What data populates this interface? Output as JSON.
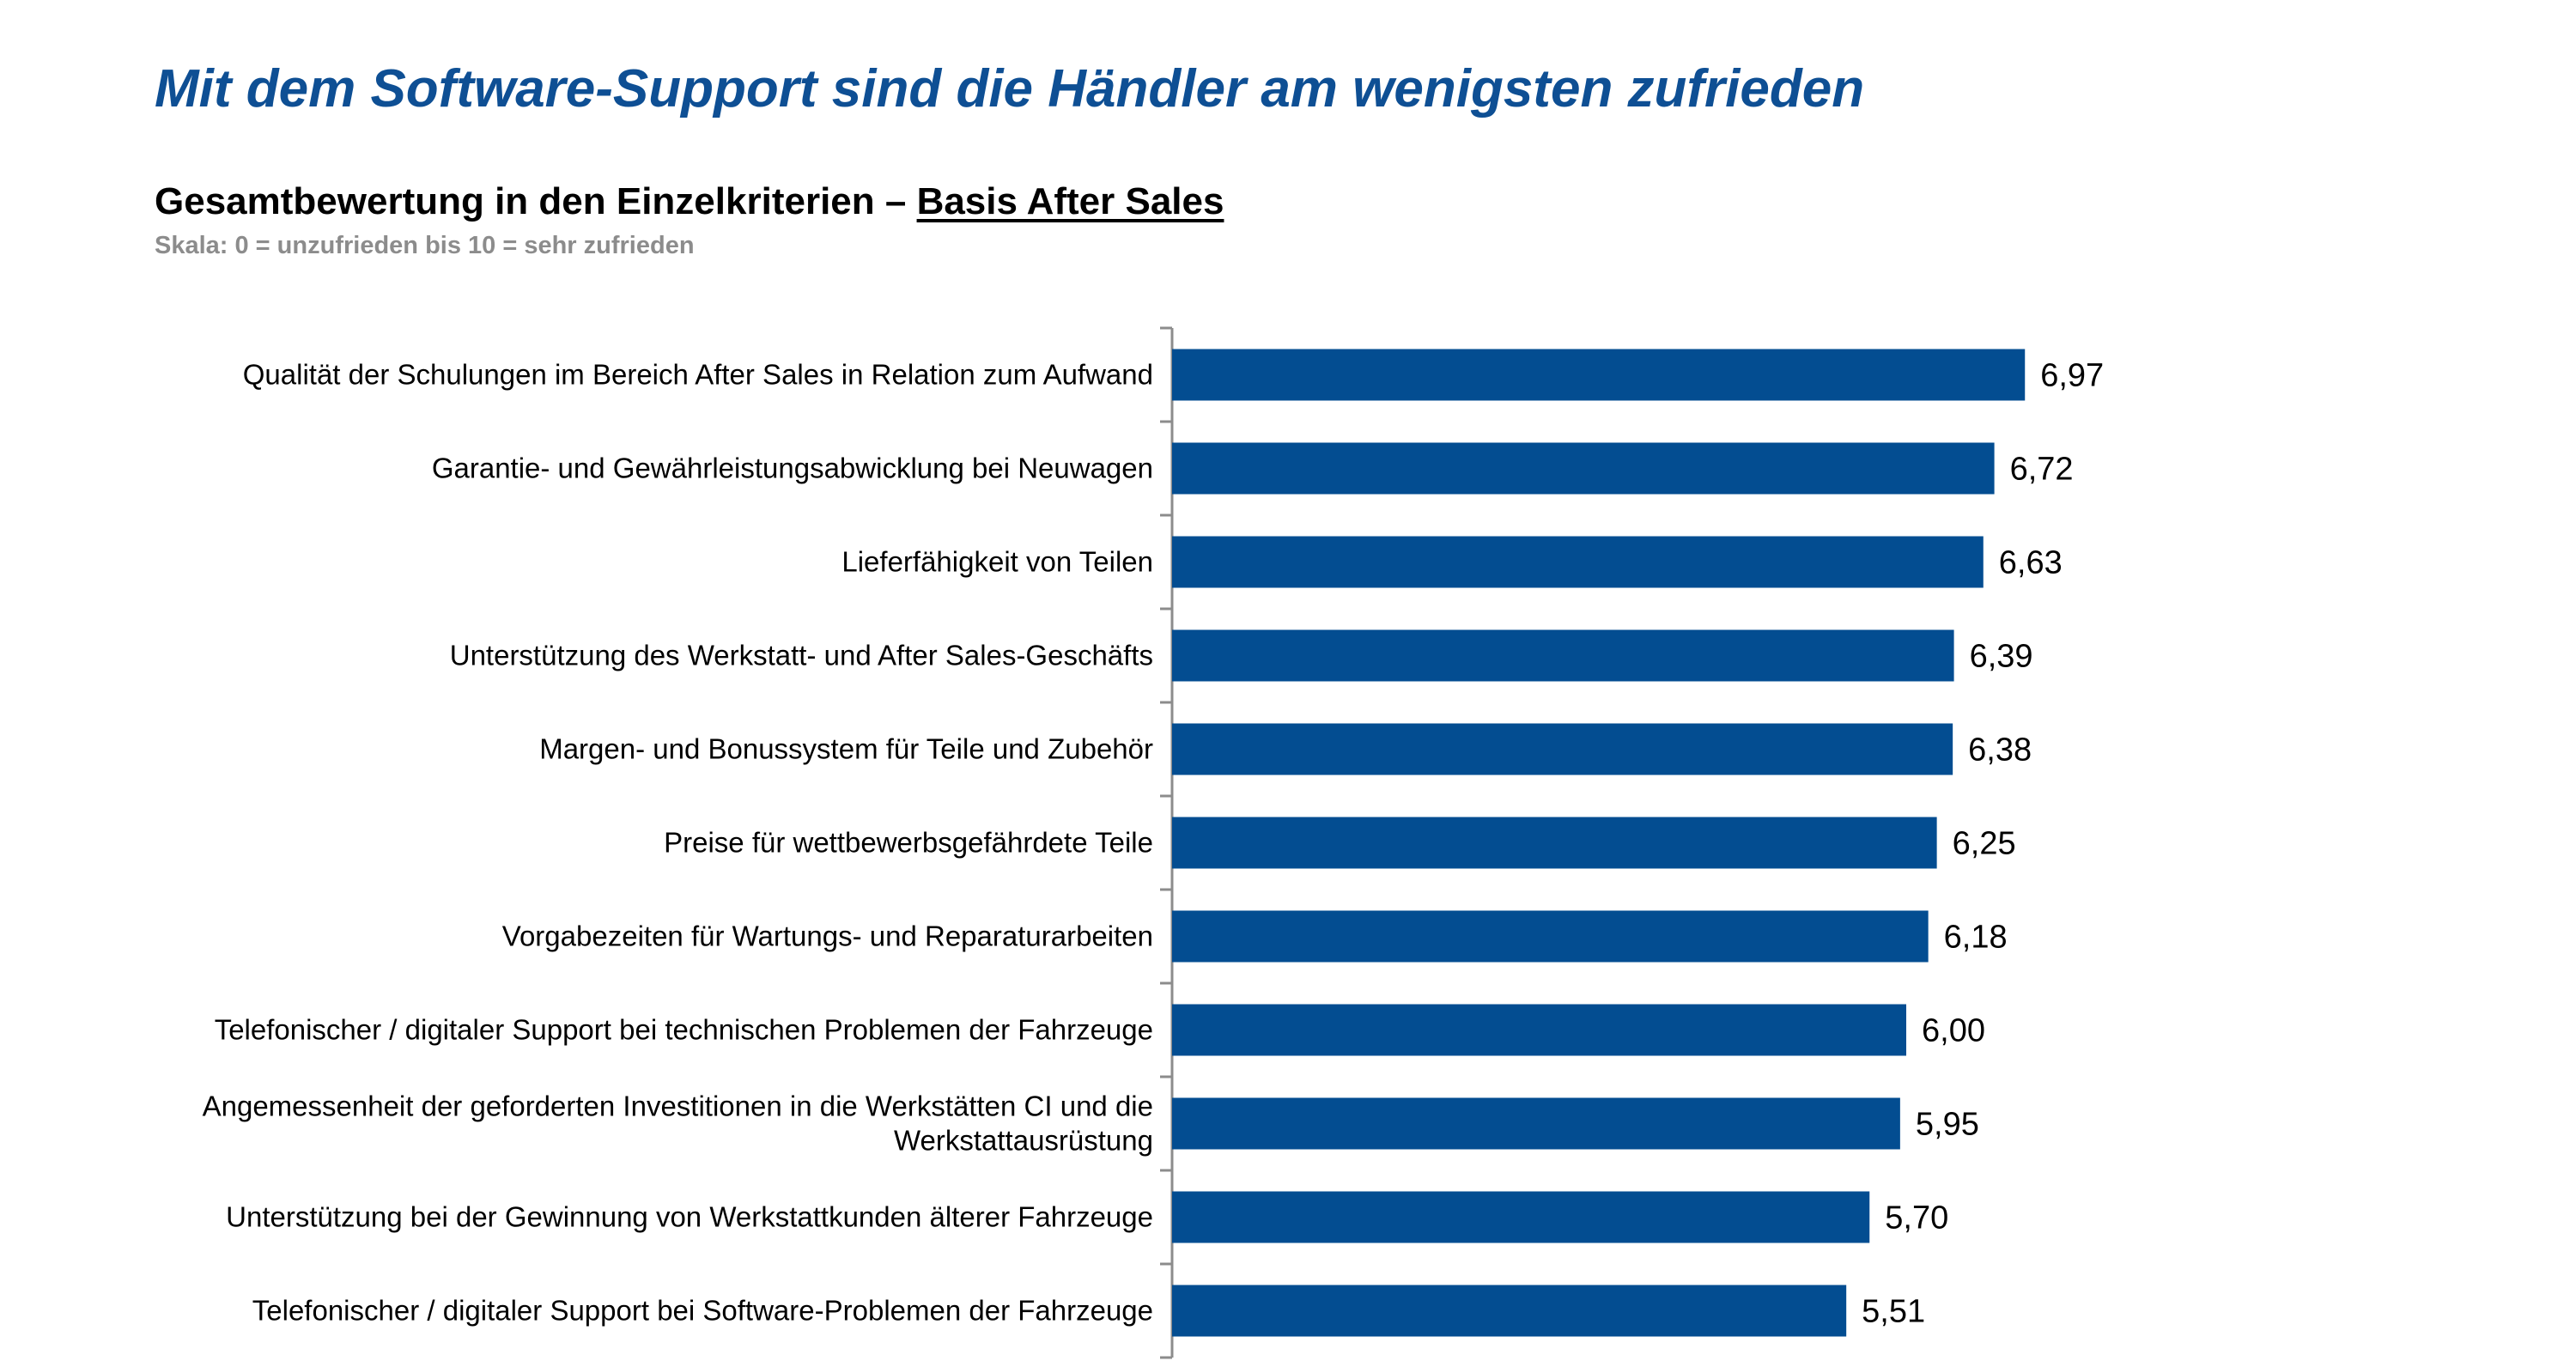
{
  "header": {
    "title": "Mit dem Software-Support sind die Händler am wenigsten zufrieden",
    "subtitle_main": "Gesamtbewertung in den Einzelkriterien – ",
    "subtitle_basis": "Basis After Sales",
    "scale_note": "Skala: 0 = unzufrieden bis 10 = sehr zufrieden"
  },
  "colors": {
    "bar": "#034d91",
    "title": "#0e4f94",
    "axis": "#8c8c8c"
  },
  "chart_data": {
    "type": "bar",
    "orientation": "horizontal",
    "categories": [
      [
        "Qualität der Schulungen im Bereich After Sales in Relation zum Aufwand"
      ],
      [
        "Garantie- und Gewährleistungsabwicklung bei Neuwagen"
      ],
      [
        "Lieferfähigkeit von Teilen"
      ],
      [
        "Unterstützung des Werkstatt- und After Sales-Geschäfts"
      ],
      [
        "Margen- und Bonussystem für Teile und Zubehör"
      ],
      [
        "Preise für wettbewerbsgefährdete Teile"
      ],
      [
        "Vorgabezeiten für Wartungs- und Reparaturarbeiten"
      ],
      [
        "Telefonischer / digitaler Support bei technischen Problemen der Fahrzeuge"
      ],
      [
        "Angemessenheit der geforderten Investitionen in die Werkstätten CI und die",
        "Werkstattausrüstung"
      ],
      [
        "Unterstützung bei der Gewinnung von Werkstattkunden älterer Fahrzeuge"
      ],
      [
        "Telefonischer / digitaler Support bei Software-Problemen der Fahrzeuge"
      ]
    ],
    "values": [
      6.97,
      6.72,
      6.63,
      6.39,
      6.38,
      6.25,
      6.18,
      6.0,
      5.95,
      5.7,
      5.51
    ],
    "value_labels": [
      "6,97",
      "6,72",
      "6,63",
      "6,39",
      "6,38",
      "6,25",
      "6,18",
      "6,00",
      "5,95",
      "5,70",
      "5,51"
    ],
    "xlim": [
      0,
      10
    ],
    "grid": false,
    "legend": "none"
  }
}
